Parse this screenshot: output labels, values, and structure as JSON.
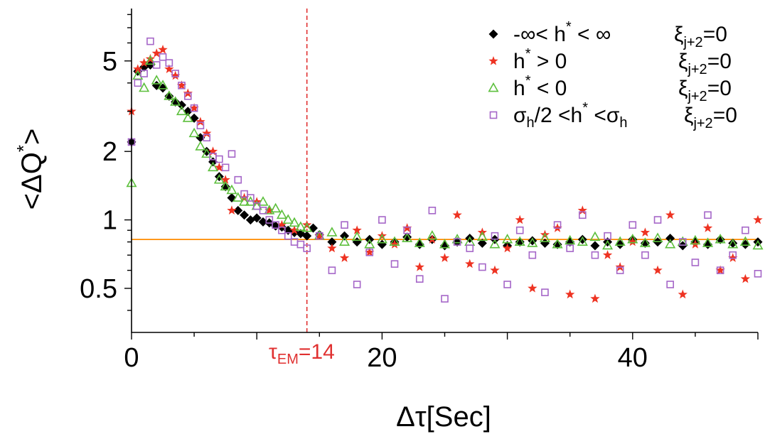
{
  "chart_data": {
    "type": "scatter",
    "title": "",
    "xlabel": "Δτ[Sec]",
    "ylabel": "<ΔQ*>",
    "xlim": [
      0,
      50
    ],
    "ylim": [
      0.32,
      8.5
    ],
    "yscale": "log",
    "x_ticks": [
      0,
      20,
      40
    ],
    "y_ticks": [
      0.5,
      1,
      2,
      5
    ],
    "legend_position": "top-right",
    "colors": {
      "black": "#000000",
      "red": "#ee3322",
      "green": "#5cbf3c",
      "purple": "#a566c8",
      "reference": "#ff8c00",
      "tau_line": "#e03030"
    },
    "reference_line": {
      "y": 0.82
    },
    "tau_marker": {
      "x": 14,
      "label_main": "τ",
      "label_sub": "EM",
      "label_value": "=14"
    },
    "legend": [
      {
        "symbol": "diamond",
        "label_parts": [
          "-∞< h",
          "*",
          " < ∞"
        ],
        "cond_main": "ξ",
        "cond_sub": "j+2",
        "cond_value": "=0"
      },
      {
        "symbol": "star",
        "label_parts": [
          "h",
          "*",
          " > 0"
        ],
        "cond_main": "ξ",
        "cond_sub": "j+2",
        "cond_value": "=0"
      },
      {
        "symbol": "triangle",
        "label_parts": [
          "h",
          "*",
          " < 0"
        ],
        "cond_main": "ξ",
        "cond_sub": "j+2",
        "cond_value": "=0"
      },
      {
        "symbol": "square",
        "label_parts": [
          "σ",
          "h",
          "/2 <h",
          "*",
          " <σ",
          "h"
        ],
        "cond_main": "ξ",
        "cond_sub": "j+2",
        "cond_value": "=0"
      }
    ],
    "series": [
      {
        "symbol": "diamond",
        "x": [
          0,
          0.5,
          1,
          1.5,
          2,
          2.5,
          3,
          3.5,
          4,
          4.5,
          5,
          5.5,
          6,
          6.5,
          7,
          7.5,
          8,
          8.5,
          9,
          9.5,
          10,
          10.5,
          11,
          11.5,
          12,
          12.5,
          13,
          13.5,
          14,
          14.5,
          15,
          16,
          17,
          18,
          19,
          20,
          21,
          22,
          23,
          24,
          25,
          26,
          27,
          28,
          29,
          30,
          31,
          32,
          33,
          34,
          35,
          36,
          37,
          38,
          39,
          40,
          41,
          42,
          43,
          44,
          45,
          46,
          47,
          48,
          49,
          50
        ],
        "y": [
          2.2,
          4.5,
          4.7,
          4.8,
          3.9,
          3.8,
          3.5,
          3.3,
          3.2,
          3.0,
          2.8,
          2.3,
          2.0,
          1.8,
          1.55,
          1.4,
          1.25,
          1.1,
          1.05,
          1.0,
          1.02,
          0.98,
          0.97,
          0.94,
          0.93,
          0.9,
          0.88,
          0.87,
          0.85,
          0.92,
          0.86,
          0.8,
          0.85,
          0.8,
          0.82,
          0.78,
          0.8,
          0.84,
          0.78,
          0.82,
          0.77,
          0.8,
          0.83,
          0.79,
          0.82,
          0.77,
          0.8,
          0.81,
          0.79,
          0.78,
          0.8,
          0.82,
          0.77,
          0.8,
          0.78,
          0.82,
          0.79,
          0.8,
          0.83,
          0.77,
          0.8,
          0.78,
          0.82,
          0.79,
          0.78,
          0.8
        ]
      },
      {
        "symbol": "star",
        "x": [
          0,
          0.5,
          1,
          1.5,
          2,
          2.5,
          3,
          3.5,
          4,
          4.5,
          5,
          5.5,
          6,
          6.5,
          7,
          7.5,
          8,
          9,
          10,
          11,
          12,
          13,
          14,
          15,
          16,
          17,
          18,
          19,
          20,
          21,
          22,
          23,
          24,
          25,
          26,
          27,
          28,
          29,
          30,
          31,
          32,
          33,
          34,
          35,
          36,
          37,
          38,
          39,
          40,
          41,
          42,
          43,
          44,
          45,
          46,
          47,
          48,
          49,
          50
        ],
        "y": [
          3.0,
          4.6,
          4.9,
          5.1,
          5.4,
          5.6,
          4.6,
          4.3,
          3.9,
          3.6,
          3.1,
          2.7,
          2.4,
          2.0,
          1.7,
          1.5,
          1.1,
          1.25,
          1.2,
          1.1,
          0.95,
          0.9,
          0.95,
          0.85,
          0.75,
          0.68,
          0.9,
          0.72,
          0.85,
          0.78,
          0.92,
          0.62,
          0.82,
          0.68,
          1.05,
          0.64,
          0.88,
          0.6,
          0.75,
          1.0,
          0.5,
          0.86,
          0.92,
          0.47,
          1.1,
          0.45,
          0.7,
          0.62,
          0.8,
          0.88,
          0.6,
          1.05,
          0.47,
          0.78,
          0.92,
          0.6,
          0.68,
          0.55,
          1.0
        ]
      },
      {
        "symbol": "triangle",
        "x": [
          0,
          0.5,
          1,
          1.5,
          2,
          2.5,
          3,
          3.5,
          4,
          4.5,
          5,
          5.5,
          6,
          6.5,
          7,
          7.5,
          8,
          8.5,
          9,
          9.5,
          10,
          10.5,
          11,
          11.5,
          12,
          12.5,
          13,
          13.5,
          14,
          15,
          16,
          17,
          18,
          19,
          20,
          21,
          22,
          23,
          24,
          25,
          26,
          27,
          28,
          29,
          30,
          31,
          32,
          33,
          34,
          35,
          36,
          37,
          38,
          39,
          40,
          41,
          42,
          43,
          44,
          45,
          46,
          47,
          48,
          49,
          50
        ],
        "y": [
          1.45,
          4.3,
          3.8,
          5.0,
          4.1,
          3.9,
          3.5,
          3.3,
          3.0,
          2.8,
          2.4,
          2.1,
          1.95,
          1.7,
          1.5,
          1.4,
          1.35,
          1.25,
          1.2,
          1.2,
          1.15,
          1.2,
          1.1,
          1.12,
          1.05,
          1.0,
          0.97,
          0.93,
          0.92,
          0.85,
          0.88,
          0.8,
          0.84,
          0.78,
          0.82,
          0.8,
          0.83,
          0.79,
          0.85,
          0.78,
          0.82,
          0.8,
          0.84,
          0.78,
          0.82,
          0.8,
          0.79,
          0.83,
          0.78,
          0.81,
          0.8,
          0.84,
          0.77,
          0.8,
          0.82,
          0.79,
          0.83,
          0.78,
          0.8,
          0.81,
          0.79,
          0.82,
          0.78,
          0.8,
          0.77
        ]
      },
      {
        "symbol": "square",
        "x": [
          0,
          0.5,
          1,
          1.5,
          2,
          2.5,
          3,
          3.5,
          4,
          4.5,
          5,
          5.5,
          6,
          6.5,
          7,
          7.5,
          8,
          8.5,
          9,
          9.5,
          10,
          10.5,
          11,
          11.5,
          12,
          12.5,
          13,
          13.5,
          14,
          15,
          16,
          17,
          18,
          19,
          20,
          21,
          22,
          23,
          24,
          25,
          26,
          27,
          28,
          29,
          30,
          31,
          32,
          33,
          34,
          35,
          36,
          37,
          38,
          39,
          40,
          41,
          42,
          43,
          44,
          45,
          46,
          47,
          48,
          49,
          50
        ],
        "y": [
          2.2,
          4.0,
          4.4,
          6.1,
          4.8,
          5.2,
          4.9,
          4.4,
          3.9,
          3.5,
          3.1,
          2.6,
          2.3,
          1.9,
          1.85,
          1.7,
          1.95,
          1.5,
          1.3,
          1.25,
          1.15,
          1.1,
          1.0,
          0.95,
          0.9,
          0.85,
          0.8,
          0.78,
          0.75,
          0.85,
          0.6,
          0.95,
          0.52,
          0.72,
          1.0,
          0.64,
          0.9,
          0.55,
          1.1,
          0.45,
          0.8,
          0.75,
          0.62,
          0.85,
          0.52,
          0.9,
          0.7,
          0.48,
          0.95,
          0.75,
          1.05,
          0.7,
          0.85,
          0.6,
          0.95,
          0.7,
          1.0,
          0.52,
          0.8,
          0.65,
          1.05,
          0.6,
          0.7,
          0.9,
          0.58
        ]
      }
    ]
  }
}
